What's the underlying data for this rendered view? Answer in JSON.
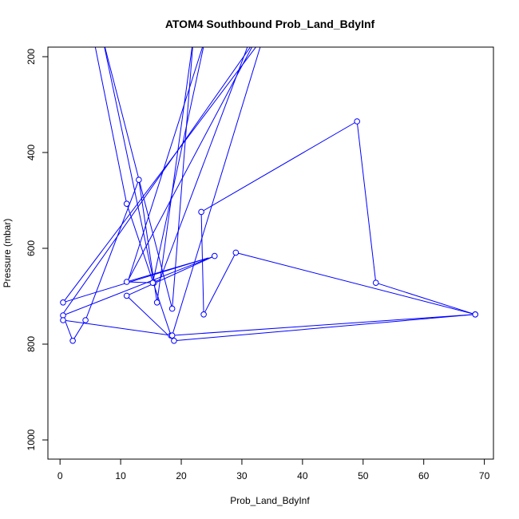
{
  "chart_data": {
    "type": "line",
    "title": "ATOM4 Southbound Prob_Land_BdyInf",
    "xlabel": "Prob_Land_BdyInf",
    "ylabel": "Pressure (mbar)",
    "xlim": [
      -2,
      71.5
    ],
    "ylim": [
      1040,
      180
    ],
    "y_reversed": true,
    "x_ticks": [
      0,
      10,
      20,
      30,
      40,
      50,
      60,
      70
    ],
    "y_ticks": [
      200,
      400,
      600,
      800,
      1000
    ],
    "series": [
      {
        "color": "#0000ff",
        "marker": "open-circle",
        "points": [
          {
            "x": 5.5,
            "y": 160,
            "marker": false
          },
          {
            "x": 11.0,
            "y": 507
          },
          {
            "x": 18.3,
            "y": 782
          },
          {
            "x": 68.5,
            "y": 738
          },
          {
            "x": 29.0,
            "y": 609
          },
          {
            "x": 23.7,
            "y": 738
          },
          {
            "x": 23.3,
            "y": 524
          },
          {
            "x": 49.0,
            "y": 335
          },
          {
            "x": 52.1,
            "y": 672
          },
          {
            "x": 68.5,
            "y": 738
          },
          {
            "x": 18.8,
            "y": 793
          },
          {
            "x": 11.0,
            "y": 699
          },
          {
            "x": 25.5,
            "y": 616
          },
          {
            "x": 0.5,
            "y": 740
          },
          {
            "x": 2.1,
            "y": 793
          },
          {
            "x": 4.2,
            "y": 750
          },
          {
            "x": 13.0,
            "y": 457
          },
          {
            "x": 16.0,
            "y": 713
          },
          {
            "x": 22.0,
            "y": 160,
            "marker": false
          },
          {
            "x": 18.5,
            "y": 726
          },
          {
            "x": 7.0,
            "y": 160,
            "marker": false
          },
          {
            "x": 15.5,
            "y": 672
          },
          {
            "x": 11.0,
            "y": 670
          },
          {
            "x": 24.5,
            "y": 620,
            "marker": false
          },
          {
            "x": 0.5,
            "y": 713
          },
          {
            "x": 33.5,
            "y": 160,
            "marker": false
          },
          {
            "x": 18.5,
            "y": 782
          },
          {
            "x": 0.5,
            "y": 750
          },
          {
            "x": 0.3,
            "y": 740,
            "marker": false
          },
          {
            "x": 32.5,
            "y": 160,
            "marker": false
          },
          {
            "x": 11.3,
            "y": 665,
            "marker": false
          },
          {
            "x": 24.0,
            "y": 160,
            "marker": false
          },
          {
            "x": 15.3,
            "y": 672
          },
          {
            "x": 16.5,
            "y": 665,
            "marker": false
          },
          {
            "x": 31.5,
            "y": 160,
            "marker": false
          }
        ]
      }
    ]
  }
}
